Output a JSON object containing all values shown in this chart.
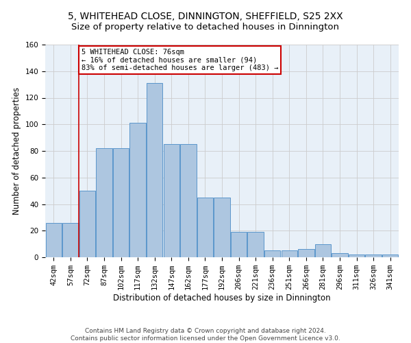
{
  "title": "5, WHITEHEAD CLOSE, DINNINGTON, SHEFFIELD, S25 2XX",
  "subtitle": "Size of property relative to detached houses in Dinnington",
  "xlabel": "Distribution of detached houses by size in Dinnington",
  "ylabel": "Number of detached properties",
  "categories": [
    "42sqm",
    "57sqm",
    "72sqm",
    "87sqm",
    "102sqm",
    "117sqm",
    "132sqm",
    "147sqm",
    "162sqm",
    "177sqm",
    "192sqm",
    "206sqm",
    "221sqm",
    "236sqm",
    "251sqm",
    "266sqm",
    "281sqm",
    "296sqm",
    "311sqm",
    "326sqm",
    "341sqm"
  ],
  "values": [
    26,
    26,
    50,
    82,
    82,
    101,
    131,
    85,
    85,
    45,
    45,
    19,
    19,
    5,
    5,
    6,
    10,
    3,
    2,
    2,
    2
  ],
  "bar_color": "#adc6e0",
  "bar_edge_color": "#5b96cc",
  "vline_x_index": 1.5,
  "vline_color": "#cc0000",
  "annotation_text": "5 WHITEHEAD CLOSE: 76sqm\n← 16% of detached houses are smaller (94)\n83% of semi-detached houses are larger (483) →",
  "annotation_box_color": "#ffffff",
  "annotation_box_edge": "#cc0000",
  "ylim": [
    0,
    160
  ],
  "yticks": [
    0,
    20,
    40,
    60,
    80,
    100,
    120,
    140,
    160
  ],
  "grid_color": "#cccccc",
  "bg_color": "#e8f0f8",
  "footer1": "Contains HM Land Registry data © Crown copyright and database right 2024.",
  "footer2": "Contains public sector information licensed under the Open Government Licence v3.0.",
  "title_fontsize": 10,
  "subtitle_fontsize": 9.5,
  "xlabel_fontsize": 8.5,
  "ylabel_fontsize": 8.5,
  "tick_fontsize": 7.5,
  "footer_fontsize": 6.5,
  "annotation_fontsize": 7.5
}
